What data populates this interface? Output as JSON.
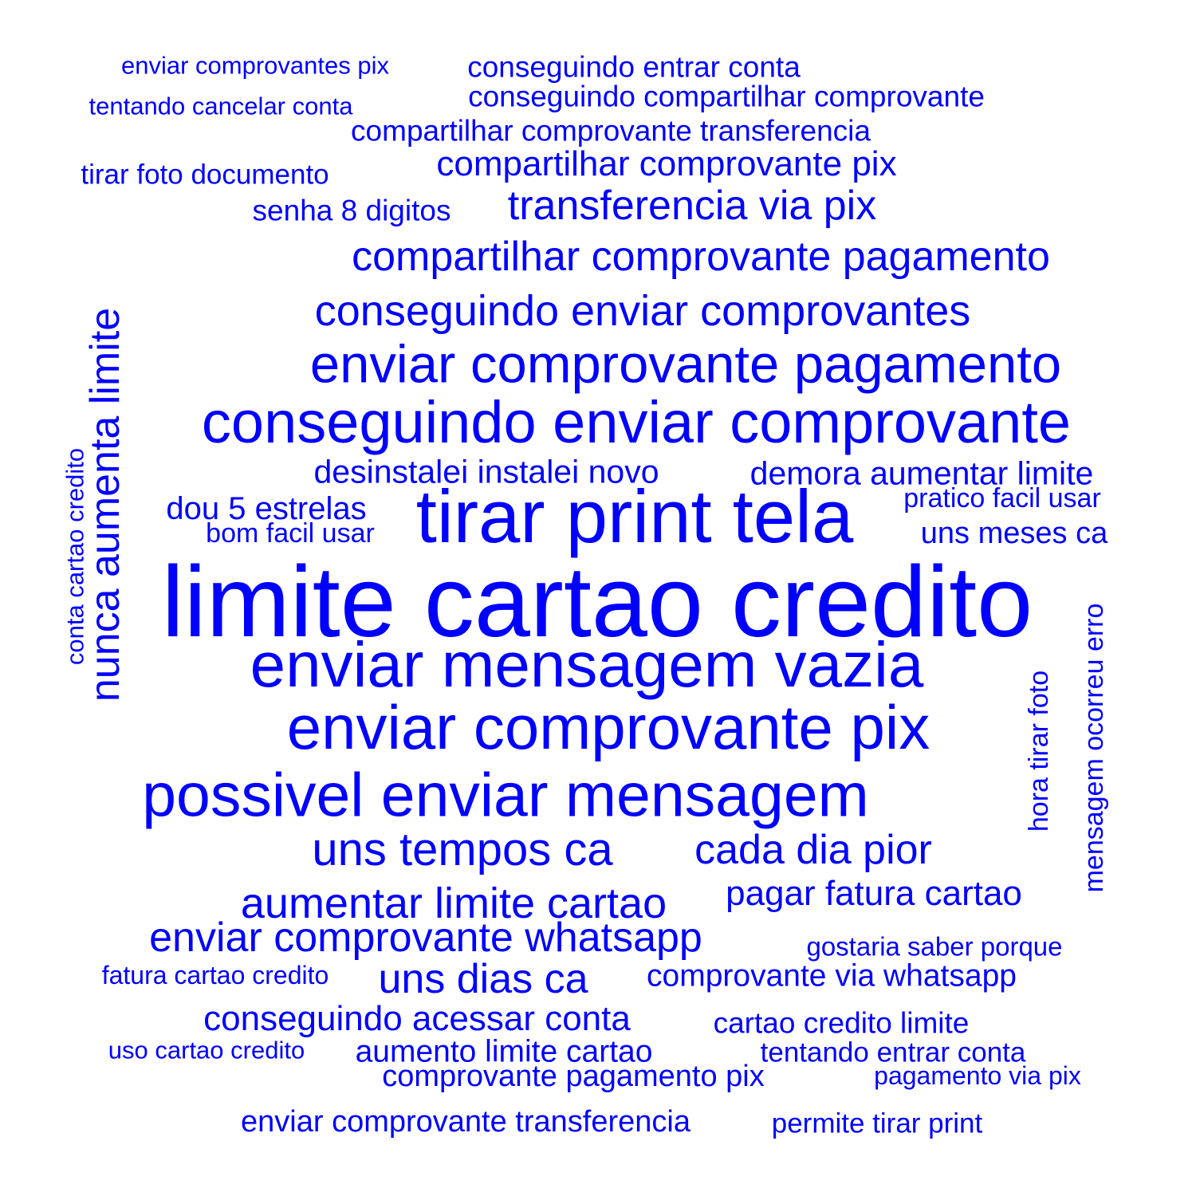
{
  "words": [
    {
      "text": "enviar comprovantes pix"
    },
    {
      "text": "conseguindo entrar conta"
    },
    {
      "text": "tentando cancelar conta"
    },
    {
      "text": "conseguindo compartilhar comprovante"
    },
    {
      "text": "compartilhar comprovante transferencia"
    },
    {
      "text": "tirar foto documento"
    },
    {
      "text": "compartilhar comprovante pix"
    },
    {
      "text": "senha 8 digitos"
    },
    {
      "text": "transferencia via pix"
    },
    {
      "text": "compartilhar comprovante pagamento"
    },
    {
      "text": "conseguindo enviar comprovantes"
    },
    {
      "text": "enviar comprovante pagamento"
    },
    {
      "text": "conseguindo enviar comprovante"
    },
    {
      "text": "desinstalei instalei novo"
    },
    {
      "text": "demora aumentar limite"
    },
    {
      "text": "dou 5 estrelas"
    },
    {
      "text": "tirar print tela"
    },
    {
      "text": "pratico facil usar"
    },
    {
      "text": "bom facil usar"
    },
    {
      "text": "uns meses ca"
    },
    {
      "text": "limite cartao credito"
    },
    {
      "text": "enviar mensagem vazia"
    },
    {
      "text": "enviar comprovante pix"
    },
    {
      "text": "possivel enviar mensagem"
    },
    {
      "text": "uns tempos ca"
    },
    {
      "text": "cada dia pior"
    },
    {
      "text": "pagar fatura cartao"
    },
    {
      "text": "aumentar limite cartao"
    },
    {
      "text": "enviar comprovante whatsapp"
    },
    {
      "text": "gostaria saber porque"
    },
    {
      "text": "fatura cartao credito"
    },
    {
      "text": "uns dias ca"
    },
    {
      "text": "comprovante via whatsapp"
    },
    {
      "text": "conseguindo acessar conta"
    },
    {
      "text": "cartao credito limite"
    },
    {
      "text": "uso cartao credito"
    },
    {
      "text": "aumento limite cartao"
    },
    {
      "text": "tentando entrar conta"
    },
    {
      "text": "comprovante pagamento pix"
    },
    {
      "text": "pagamento via pix"
    },
    {
      "text": "enviar comprovante transferencia"
    },
    {
      "text": "permite tirar print"
    },
    {
      "text": "conta cartao credito",
      "orientation": "vertical"
    },
    {
      "text": "nunca aumenta limite",
      "orientation": "vertical"
    },
    {
      "text": "hora tirar foto",
      "orientation": "vertical"
    },
    {
      "text": "mensagem ocorreu erro",
      "orientation": "vertical"
    }
  ],
  "colors": {
    "word": "#0000ff",
    "background": "#ffffff"
  }
}
